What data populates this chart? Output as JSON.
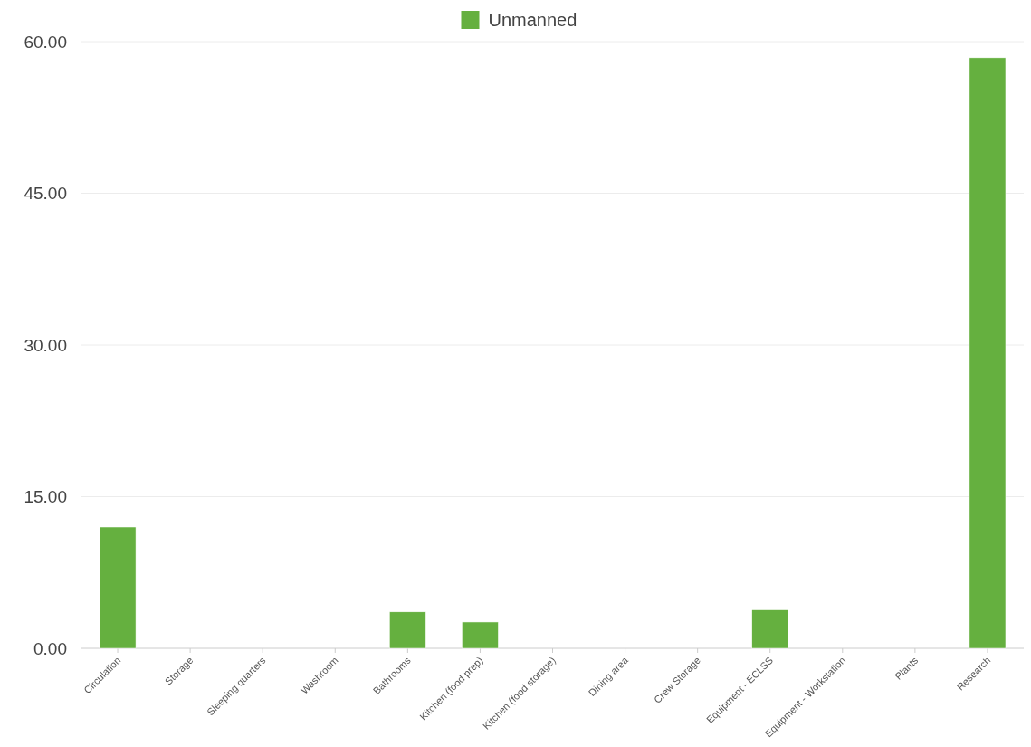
{
  "chart_data": {
    "type": "bar",
    "categories": [
      "Circulation",
      "Storage",
      "Sleeping quarters",
      "Washroom",
      "Bathrooms",
      "Kitchen (food prep)",
      "Kitchen (food storage)",
      "Dining area",
      "Crew Storage",
      "Equipment - ECLSS",
      "Equipment - Workstation",
      "Plants",
      "Research"
    ],
    "series": [
      {
        "name": "Unmanned",
        "color": "#65b03f",
        "values": [
          12.0,
          0,
          0,
          0,
          3.6,
          2.6,
          0,
          0,
          0,
          3.8,
          0,
          0,
          58.4
        ]
      }
    ],
    "ylim": [
      0,
      60
    ],
    "yticks": [
      {
        "value": 0,
        "label": "0.00"
      },
      {
        "value": 15,
        "label": "15.00"
      },
      {
        "value": 30,
        "label": "30.00"
      },
      {
        "value": 45,
        "label": "45.00"
      },
      {
        "value": 60,
        "label": "60.00"
      }
    ],
    "grid": "y",
    "legend": "top"
  }
}
